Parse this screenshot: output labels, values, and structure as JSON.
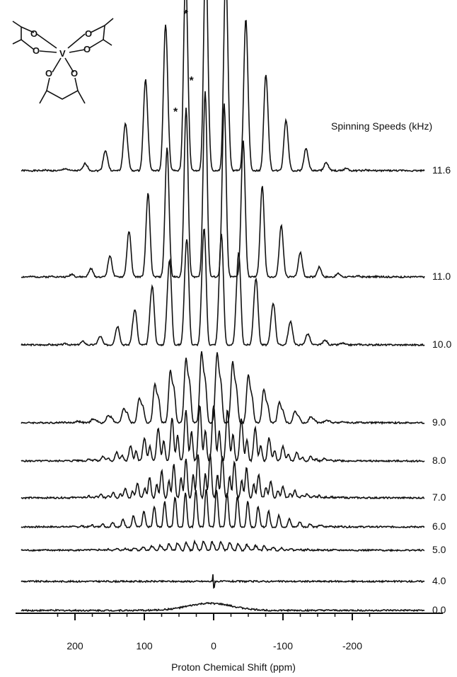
{
  "chart_data": {
    "type": "line",
    "xlabel": "Proton Chemical Shift (ppm)",
    "legend_title": "Spinning Speeds (kHz)",
    "xlim": [
      240,
      -240
    ],
    "x_reversed": true,
    "x_ticks": [
      200,
      100,
      0,
      -100,
      -200
    ],
    "x_tick_labels": [
      "200",
      "100",
      "0",
      "-100",
      "-200"
    ],
    "series": [
      {
        "name": "11.6",
        "spinning_speed_khz": 11.6,
        "peak_ppm": 40,
        "sideband_spacing_ppm": 29
      },
      {
        "name": "11.0",
        "spinning_speed_khz": 11.0,
        "peak_ppm": 40,
        "sideband_spacing_ppm": 27.5
      },
      {
        "name": "10.0",
        "spinning_speed_khz": 10.0,
        "peak_ppm": 40,
        "sideband_spacing_ppm": 25
      },
      {
        "name": "9.0",
        "spinning_speed_khz": 9.0,
        "peak_ppm": 40,
        "sideband_spacing_ppm": 22.5
      },
      {
        "name": "8.0",
        "spinning_speed_khz": 8.0,
        "peak_ppm": 40,
        "sideband_spacing_ppm": 20
      },
      {
        "name": "7.0",
        "spinning_speed_khz": 7.0,
        "peak_ppm": 40,
        "sideband_spacing_ppm": 17.5
      },
      {
        "name": "6.0",
        "spinning_speed_khz": 6.0,
        "peak_ppm": 40,
        "sideband_spacing_ppm": 15
      },
      {
        "name": "5.0",
        "spinning_speed_khz": 5.0,
        "peak_ppm": 40,
        "sideband_spacing_ppm": 12.5
      },
      {
        "name": "4.0",
        "spinning_speed_khz": 4.0,
        "peak_ppm": 5,
        "sideband_spacing_ppm": 10
      },
      {
        "name": "0.0",
        "spinning_speed_khz": 0.0,
        "peak_ppm": 5,
        "sideband_spacing_ppm": 0
      }
    ],
    "annotations": [
      {
        "text": "*",
        "x_ppm": 40
      },
      {
        "text": "*",
        "x_ppm": 33
      },
      {
        "text": "*",
        "x_ppm": 55
      }
    ],
    "structure_image": "V(acac)3"
  },
  "labels": {
    "structure_atom_v": "V",
    "structure_atom_o": "O"
  }
}
